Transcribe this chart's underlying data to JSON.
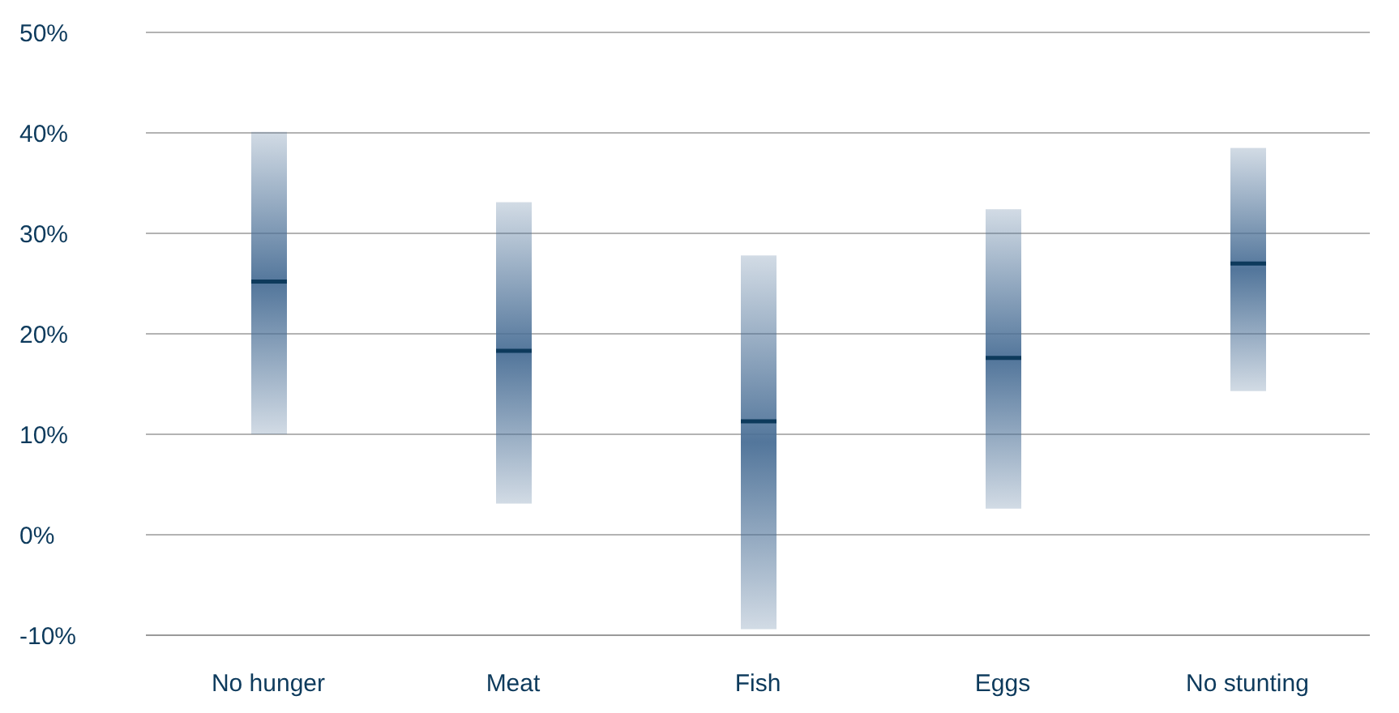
{
  "chart_data": {
    "type": "box",
    "categories": [
      "No hunger",
      "Meat",
      "Fish",
      "Eggs",
      "No stunting"
    ],
    "color": "#4a6f96",
    "boxes": [
      {
        "low": 10.0,
        "q1": 10.0,
        "median": 25.2,
        "q3": 40.1,
        "high": 40.1
      },
      {
        "low": 3.1,
        "q1": 3.1,
        "median": 18.3,
        "q3": 33.1,
        "high": 33.1
      },
      {
        "low": -9.4,
        "q1": -9.4,
        "median": 11.3,
        "q3": 27.8,
        "high": 27.8
      },
      {
        "low": 2.6,
        "q1": 2.6,
        "median": 17.6,
        "q3": 32.4,
        "high": 32.4
      },
      {
        "low": 14.3,
        "q1": 14.3,
        "median": 27.0,
        "q3": 38.5,
        "high": 38.5
      }
    ],
    "ylim": [
      -10,
      50
    ],
    "yticks": [
      {
        "value": -10,
        "label": "-10%"
      },
      {
        "value": 0,
        "label": "0%"
      },
      {
        "value": 10,
        "label": "10%"
      },
      {
        "value": 20,
        "label": "20%"
      },
      {
        "value": 30,
        "label": "30%"
      },
      {
        "value": 40,
        "label": "40%"
      },
      {
        "value": 50,
        "label": "50%"
      }
    ],
    "grid": "y",
    "legend": false
  }
}
